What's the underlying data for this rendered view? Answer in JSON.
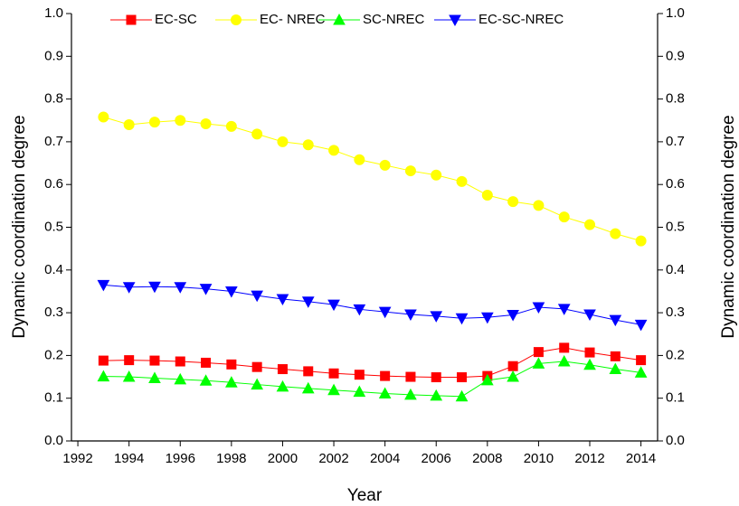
{
  "chart_data": {
    "type": "line",
    "x_label": "Year",
    "y_label": "Dynamic coordination degree",
    "y2_label": "Dynamic coordination degree",
    "x": [
      1993,
      1994,
      1995,
      1996,
      1997,
      1998,
      1999,
      2000,
      2001,
      2002,
      2003,
      2004,
      2005,
      2006,
      2007,
      2008,
      2009,
      2010,
      2011,
      2012,
      2013,
      2014
    ],
    "xlim": [
      1991.75,
      2014.65
    ],
    "xticks": [
      1992,
      1994,
      1996,
      1998,
      2000,
      2002,
      2004,
      2006,
      2008,
      2010,
      2012,
      2014
    ],
    "ylim": [
      0,
      1
    ],
    "yticks": [
      {
        "value": 0,
        "label": "0.0"
      },
      0.1,
      0.2,
      0.3,
      0.4,
      0.5,
      0.6,
      0.7,
      0.8,
      0.9,
      {
        "value": 1,
        "label": "1.0"
      }
    ],
    "y2lim": [
      0,
      1
    ],
    "y2ticks": [
      {
        "value": 0,
        "label": "0.0"
      },
      0.1,
      0.2,
      0.3,
      0.4,
      0.5,
      0.6,
      0.7,
      0.8,
      0.9,
      {
        "value": 1,
        "label": "1.0"
      }
    ],
    "legend_position": "top",
    "series": [
      {
        "name": "EC-SC",
        "color": "#ff0000",
        "marker": "square",
        "values": [
          0.188,
          0.189,
          0.188,
          0.186,
          0.183,
          0.179,
          0.173,
          0.168,
          0.163,
          0.158,
          0.155,
          0.152,
          0.15,
          0.149,
          0.149,
          0.152,
          0.175,
          0.208,
          0.218,
          0.207,
          0.198,
          0.189
        ]
      },
      {
        "name": "EC- NREC",
        "color": "#ffff00",
        "marker": "circle",
        "values": [
          0.758,
          0.74,
          0.746,
          0.75,
          0.742,
          0.736,
          0.718,
          0.7,
          0.693,
          0.68,
          0.658,
          0.645,
          0.632,
          0.622,
          0.607,
          0.575,
          0.56,
          0.551,
          0.524,
          0.506,
          0.485,
          0.468
        ]
      },
      {
        "name": "SC-NREC",
        "color": "#00ff00",
        "marker": "triangle-up",
        "values": [
          0.151,
          0.15,
          0.147,
          0.144,
          0.141,
          0.137,
          0.132,
          0.127,
          0.123,
          0.119,
          0.115,
          0.111,
          0.108,
          0.106,
          0.104,
          0.142,
          0.15,
          0.181,
          0.186,
          0.178,
          0.168,
          0.16
        ]
      },
      {
        "name": "EC-SC-NREC",
        "color": "#0000ff",
        "marker": "triangle-down",
        "values": [
          0.365,
          0.36,
          0.361,
          0.36,
          0.356,
          0.35,
          0.34,
          0.332,
          0.326,
          0.319,
          0.308,
          0.302,
          0.296,
          0.292,
          0.287,
          0.289,
          0.295,
          0.313,
          0.309,
          0.296,
          0.283,
          0.272
        ]
      }
    ]
  }
}
